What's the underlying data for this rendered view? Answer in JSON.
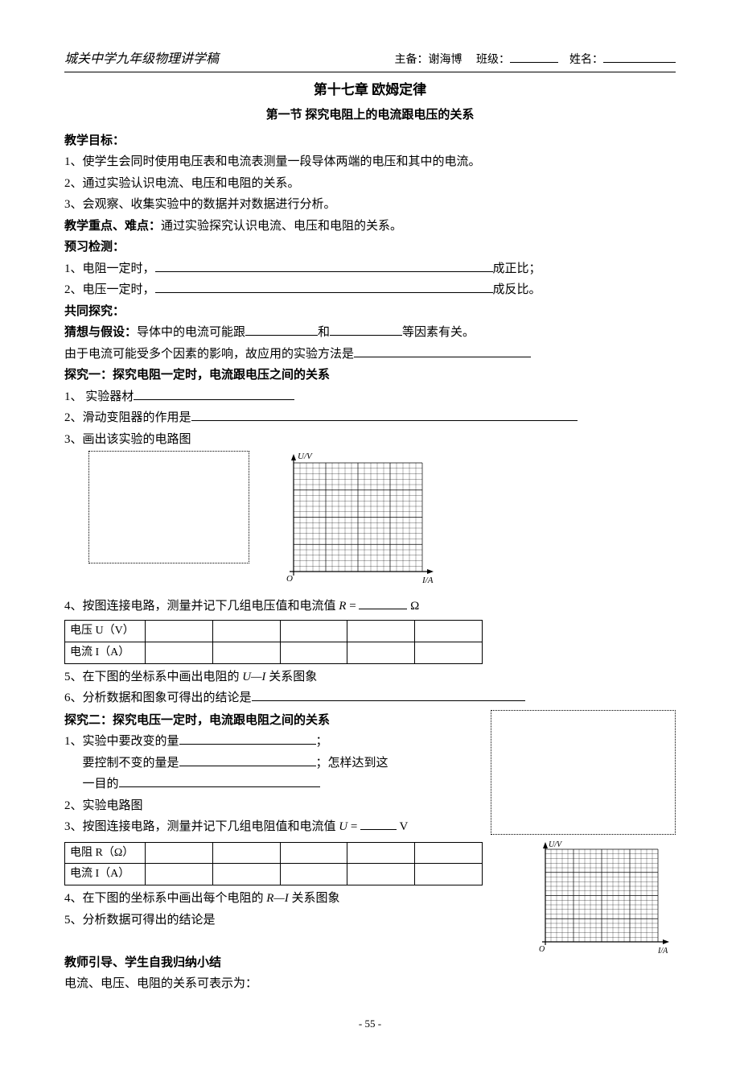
{
  "header": {
    "school": "城关中学九年级物理讲学稿",
    "prep_label": "主备：",
    "prep_name": "谢海博",
    "class_label": "班级：",
    "name_label": "姓名："
  },
  "titles": {
    "chapter": "第十七章  欧姆定律",
    "section": "第一节  探究电阻上的电流跟电压的关系"
  },
  "goals": {
    "head": "教学目标：",
    "g1": "1、使学生会同时使用电压表和电流表测量一段导体两端的电压和其中的电流。",
    "g2": "2、通过实验认识电流、电压和电阻的关系。",
    "g3": "3、会观察、收集实验中的数据并对数据进行分析。"
  },
  "keypoint": {
    "head": "教学重点、难点：",
    "text": "通过实验探究认识电流、电压和电阻的关系。"
  },
  "pretest": {
    "head": "预习检测：",
    "q1a": "1、电阻一定时，",
    "q1b": "成正比；",
    "q2a": "2、电压一定时，",
    "q2b": "成反比。"
  },
  "explore": {
    "head": "共同探究：",
    "hyp_head": "猜想与假设：",
    "hyp1a": "导体中的电流可能跟",
    "hyp1b": "和",
    "hyp1c": "等因素有关。",
    "hyp2a": "由于电流可能受多个因素的影响，故应用的实验方法是"
  },
  "exp1": {
    "head": "探究一：探究电阻一定时，电流跟电压之间的关系",
    "q1": "1、 实验器材",
    "q2": "2、滑动变阻器的作用是",
    "q3": "3、画出该实验的电路图",
    "q4a": "4、按图连接电路，测量并记下几组电压值和电流值 ",
    "q4r": "R",
    "q4eq": " = ",
    "q4unit": " Ω",
    "tbl_r1": "电压 U（V）",
    "tbl_r2": "电流 I（A）",
    "q5a": "5、在下图的坐标系中画出电阻的 ",
    "q5ui": "U—I",
    "q5b": " 关系图象",
    "q6": "6、分析数据和图象可得出的结论是"
  },
  "exp2": {
    "head": "探究二：探究电压一定时，电流跟电阻之间的关系",
    "q1": "1、实验中要改变的量",
    "q1b": "；",
    "q1c": "要控制不变的量是",
    "q1d": "；怎样达到这",
    "q1e": "一目的",
    "q2": "2、实验电路图",
    "q3a": "3、按图连接电路，测量并记下几组电阻值和电流值 ",
    "q3u": "U",
    "q3eq": " = ",
    "q3unit": " V",
    "tbl_r1": "电阻 R（Ω）",
    "tbl_r2": "电流 I（A）",
    "q4a": "4、在下图的坐标系中画出每个电阻的 ",
    "q4ri": "R—I",
    "q4b": " 关系图象",
    "q5": "5、分析数据可得出的结论是"
  },
  "summary": {
    "head": "教师引导、学生自我归纳小结",
    "text": "电流、电压、电阻的关系可表示为："
  },
  "chart": {
    "ylabel": "U/V",
    "xlabel": "I/A",
    "origin": "O",
    "grid_color": "#000000",
    "bg": "#ffffff",
    "cells": 20
  },
  "footer": {
    "page": "- 55 -"
  }
}
